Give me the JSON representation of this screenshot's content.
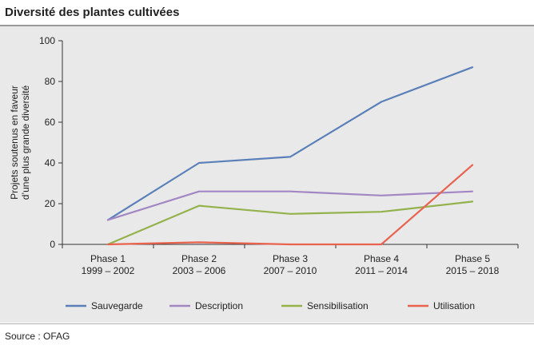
{
  "header": {
    "title": "Diversité des plantes cultivées"
  },
  "footer": {
    "source": "Source : OFAG"
  },
  "chart_data": {
    "type": "line",
    "title": "Diversité des plantes cultivées",
    "xlabel": "",
    "ylabel": "Projets soutenus en faveur d’une plus grande diversité",
    "ylabel_lines": [
      "Projets soutenus en faveur",
      "d’une plus grande diversité"
    ],
    "ylim": [
      0,
      100
    ],
    "yticks": [
      0,
      20,
      40,
      60,
      80,
      100
    ],
    "grid": false,
    "legend_position": "bottom",
    "categories": [
      [
        "Phase 1",
        "1999 – 2002"
      ],
      [
        "Phase 2",
        "2003 – 2006"
      ],
      [
        "Phase 3",
        "2007 – 2010"
      ],
      [
        "Phase 4",
        "2011 – 2014"
      ],
      [
        "Phase 5",
        "2015 – 2018"
      ]
    ],
    "series": [
      {
        "name": "Sauvegarde",
        "color": "#5b80b9",
        "values": [
          12,
          40,
          43,
          70,
          87
        ]
      },
      {
        "name": "Description",
        "color": "#a287c3",
        "values": [
          12,
          26,
          26,
          24,
          26
        ]
      },
      {
        "name": "Sensibilisation",
        "color": "#93b24b",
        "values": [
          0,
          19,
          15,
          16,
          21
        ]
      },
      {
        "name": "Utilisation",
        "color": "#e8624e",
        "values": [
          0,
          1,
          0,
          0,
          39
        ]
      }
    ]
  }
}
